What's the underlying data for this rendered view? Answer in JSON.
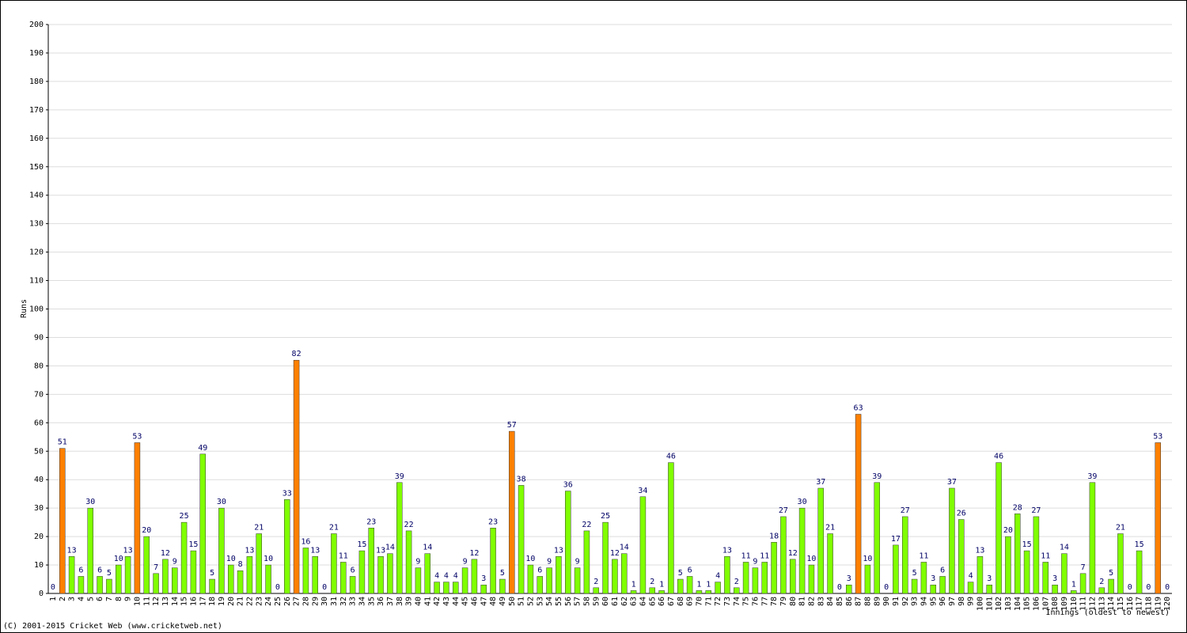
{
  "chart_data": {
    "type": "bar",
    "y_label": "Runs",
    "x_label": "Innings (oldest to newest)",
    "footer": "(C) 2001-2015 Cricket Web (www.cricketweb.net)",
    "categories": [
      "1",
      "2",
      "3",
      "4",
      "5",
      "6",
      "7",
      "8",
      "9",
      "10",
      "11",
      "12",
      "13",
      "14",
      "15",
      "16",
      "17",
      "18",
      "19",
      "20",
      "21",
      "22",
      "23",
      "24",
      "25",
      "26",
      "27",
      "28",
      "29",
      "30",
      "31",
      "32",
      "33",
      "34",
      "35",
      "36",
      "37",
      "38",
      "39",
      "40",
      "41",
      "42",
      "43",
      "44",
      "45",
      "46",
      "47",
      "48",
      "49",
      "50",
      "51",
      "52",
      "53",
      "54",
      "55",
      "56",
      "57",
      "58",
      "59",
      "60",
      "61",
      "62",
      "63",
      "64",
      "65",
      "66",
      "67",
      "68",
      "69",
      "70",
      "71",
      "72",
      "73",
      "74",
      "75",
      "76",
      "77",
      "78",
      "79",
      "80",
      "81",
      "82",
      "83",
      "84",
      "85",
      "86",
      "87",
      "88",
      "89",
      "90",
      "91",
      "92",
      "93",
      "94",
      "95",
      "96",
      "97",
      "98",
      "99",
      "100",
      "101",
      "102",
      "103",
      "104",
      "105",
      "106",
      "107",
      "108",
      "109",
      "110",
      "111",
      "112",
      "113",
      "114",
      "115",
      "116",
      "117",
      "118",
      "119",
      "120"
    ],
    "values": [
      0,
      51,
      13,
      6,
      30,
      6,
      5,
      10,
      13,
      53,
      20,
      7,
      12,
      9,
      25,
      15,
      49,
      5,
      30,
      10,
      8,
      13,
      21,
      10,
      0,
      33,
      82,
      16,
      13,
      0,
      21,
      11,
      6,
      15,
      23,
      13,
      14,
      39,
      22,
      9,
      14,
      4,
      4,
      4,
      9,
      12,
      3,
      23,
      5,
      57,
      38,
      10,
      6,
      9,
      13,
      36,
      9,
      22,
      2,
      25,
      12,
      14,
      1,
      34,
      2,
      1,
      46,
      5,
      6,
      1,
      1,
      4,
      13,
      2,
      11,
      9,
      11,
      18,
      27,
      12,
      30,
      10,
      37,
      21,
      0,
      3,
      63,
      10,
      39,
      0,
      17,
      27,
      5,
      11,
      3,
      6,
      37,
      26,
      4,
      13,
      3,
      46,
      20,
      28,
      15,
      27,
      11,
      3,
      14,
      1,
      7,
      39,
      2,
      5,
      21,
      0,
      15,
      0,
      53,
      0
    ],
    "colors": [
      "#80ff00",
      "#ff8000",
      "#80ff00",
      "#80ff00",
      "#80ff00",
      "#80ff00",
      "#80ff00",
      "#80ff00",
      "#80ff00",
      "#ff8000",
      "#80ff00",
      "#80ff00",
      "#80ff00",
      "#80ff00",
      "#80ff00",
      "#80ff00",
      "#80ff00",
      "#80ff00",
      "#80ff00",
      "#80ff00",
      "#80ff00",
      "#80ff00",
      "#80ff00",
      "#80ff00",
      "#80ff00",
      "#80ff00",
      "#ff8000",
      "#80ff00",
      "#80ff00",
      "#80ff00",
      "#80ff00",
      "#80ff00",
      "#80ff00",
      "#80ff00",
      "#80ff00",
      "#80ff00",
      "#80ff00",
      "#80ff00",
      "#80ff00",
      "#80ff00",
      "#80ff00",
      "#80ff00",
      "#80ff00",
      "#80ff00",
      "#80ff00",
      "#80ff00",
      "#80ff00",
      "#80ff00",
      "#80ff00",
      "#ff8000",
      "#80ff00",
      "#80ff00",
      "#80ff00",
      "#80ff00",
      "#80ff00",
      "#80ff00",
      "#80ff00",
      "#80ff00",
      "#80ff00",
      "#80ff00",
      "#80ff00",
      "#80ff00",
      "#80ff00",
      "#80ff00",
      "#80ff00",
      "#80ff00",
      "#80ff00",
      "#80ff00",
      "#80ff00",
      "#80ff00",
      "#80ff00",
      "#80ff00",
      "#80ff00",
      "#80ff00",
      "#80ff00",
      "#80ff00",
      "#80ff00",
      "#80ff00",
      "#80ff00",
      "#80ff00",
      "#80ff00",
      "#80ff00",
      "#80ff00",
      "#80ff00",
      "#80ff00",
      "#80ff00",
      "#ff8000",
      "#80ff00",
      "#80ff00",
      "#80ff00",
      "#80ff00",
      "#80ff00",
      "#80ff00",
      "#80ff00",
      "#80ff00",
      "#80ff00",
      "#80ff00",
      "#80ff00",
      "#80ff00",
      "#80ff00",
      "#80ff00",
      "#80ff00",
      "#80ff00",
      "#80ff00",
      "#80ff00",
      "#80ff00",
      "#80ff00",
      "#80ff00",
      "#80ff00",
      "#80ff00",
      "#80ff00",
      "#80ff00",
      "#80ff00",
      "#80ff00",
      "#80ff00",
      "#80ff00",
      "#80ff00",
      "#80ff00",
      "#ff8000",
      "#80ff00"
    ],
    "ylim": [
      0,
      200
    ],
    "yticks": [
      0,
      10,
      20,
      30,
      40,
      50,
      60,
      70,
      80,
      90,
      100,
      110,
      120,
      130,
      140,
      150,
      160,
      170,
      180,
      190,
      200
    ],
    "grid": true
  }
}
